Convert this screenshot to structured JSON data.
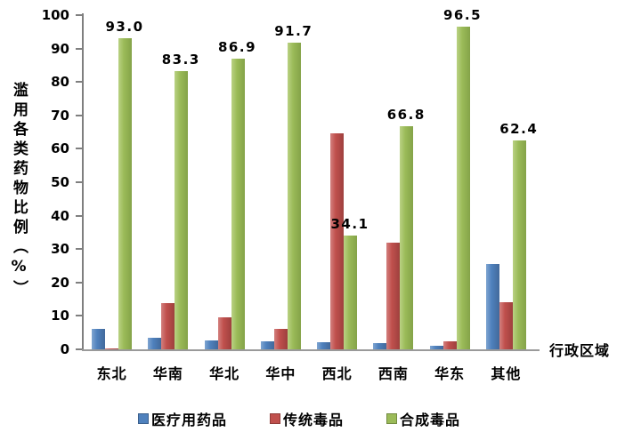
{
  "chart_data": {
    "type": "bar",
    "title": "",
    "categories": [
      "东北",
      "华南",
      "华北",
      "华中",
      "西北",
      "西南",
      "华东",
      "其他"
    ],
    "series": [
      {
        "name": "医疗用药品",
        "key": "medical-drugs",
        "color": "#4F81BD",
        "color_light": "#7fa5d1",
        "color_dark": "#42699b",
        "values": [
          6.0,
          3.5,
          2.7,
          2.3,
          2.0,
          1.9,
          1.0,
          25.5
        ]
      },
      {
        "name": "传统毒品",
        "key": "traditional-drugs",
        "color": "#C0504D",
        "color_light": "#d3807e",
        "color_dark": "#9e403e",
        "values": [
          0.4,
          13.9,
          9.5,
          6.0,
          64.5,
          32.0,
          2.4,
          14.0
        ]
      },
      {
        "name": "合成毒品",
        "key": "synthetic-drugs",
        "color": "#9BBB59",
        "color_light": "#bad284",
        "color_dark": "#84a348",
        "values": [
          93.0,
          83.3,
          86.9,
          91.7,
          34.1,
          66.8,
          96.5,
          62.4
        ],
        "labels": [
          "93.0",
          "83.3",
          "86.9",
          "91.7",
          "34.1",
          "66.8",
          "96.5",
          "62.4"
        ]
      }
    ],
    "ylabel": "滥用各类药物比例（%）",
    "xlabel": "行政区域",
    "ylim": [
      0,
      100
    ],
    "yticks": [
      0,
      10,
      20,
      30,
      40,
      50,
      60,
      70,
      80,
      90,
      100
    ],
    "grid": false,
    "legend_position": "bottom",
    "data_labels_on": "合成毒品",
    "axis_color": "#7f7f7f",
    "label_color": "#000000"
  }
}
